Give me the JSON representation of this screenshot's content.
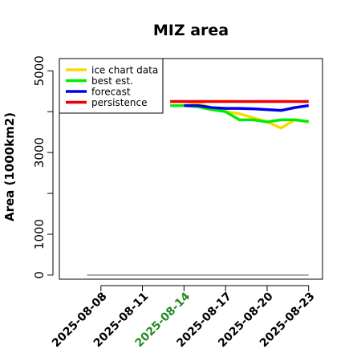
{
  "chart_data": {
    "type": "line",
    "title": "MIZ area",
    "ylabel": "Area (1000km2)",
    "xlabel": "",
    "ylim": [
      -100,
      5300
    ],
    "xlim": [
      "2025-08-05",
      "2025-08-24"
    ],
    "yticks": [
      "0",
      "1000",
      "3000",
      "5000"
    ],
    "yticks_minor": [
      2000,
      4000
    ],
    "xticks": [
      {
        "label": "2025-08-08",
        "date": "2025-08-08",
        "color": "#000000"
      },
      {
        "label": "2025-08-11",
        "date": "2025-08-11",
        "color": "#000000"
      },
      {
        "label": "2025-08-14",
        "date": "2025-08-14",
        "color": "#228B22"
      },
      {
        "label": "2025-08-17",
        "date": "2025-08-17",
        "color": "#000000"
      },
      {
        "label": "2025-08-20",
        "date": "2025-08-20",
        "color": "#000000"
      },
      {
        "label": "2025-08-23",
        "date": "2025-08-23",
        "color": "#000000"
      }
    ],
    "legend_position": "top-left",
    "grid": false,
    "series": [
      {
        "name": "ice chart data",
        "color": "#FFD700",
        "x": [
          "2025-08-14",
          "2025-08-15",
          "2025-08-16",
          "2025-08-17",
          "2025-08-18",
          "2025-08-19",
          "2025-08-20",
          "2025-08-21",
          "2025-08-22",
          "2025-08-23"
        ],
        "y": [
          4250,
          4200,
          4100,
          4000,
          3950,
          3850,
          3750,
          3600,
          3800,
          3750
        ]
      },
      {
        "name": "best est.",
        "color": "#00EE00",
        "x": [
          "2025-08-13",
          "2025-08-14",
          "2025-08-15",
          "2025-08-16",
          "2025-08-17",
          "2025-08-18",
          "2025-08-19",
          "2025-08-20",
          "2025-08-21",
          "2025-08-22",
          "2025-08-23"
        ],
        "y": [
          4150,
          4150,
          4120,
          4050,
          4000,
          3800,
          3800,
          3750,
          3800,
          3800,
          3760
        ]
      },
      {
        "name": "forecast",
        "color": "#0000EE",
        "x": [
          "2025-08-14",
          "2025-08-15",
          "2025-08-16",
          "2025-08-17",
          "2025-08-18",
          "2025-08-19",
          "2025-08-20",
          "2025-08-21",
          "2025-08-22",
          "2025-08-23"
        ],
        "y": [
          4150,
          4150,
          4100,
          4080,
          4080,
          4070,
          4050,
          4030,
          4100,
          4150
        ]
      },
      {
        "name": "persistence",
        "color": "#EE0000",
        "x": [
          "2025-08-13",
          "2025-08-23"
        ],
        "y": [
          4250,
          4250
        ]
      }
    ],
    "baseline": {
      "color": "#888888",
      "x": [
        "2025-08-07",
        "2025-08-23"
      ],
      "y": [
        0,
        0
      ]
    }
  }
}
